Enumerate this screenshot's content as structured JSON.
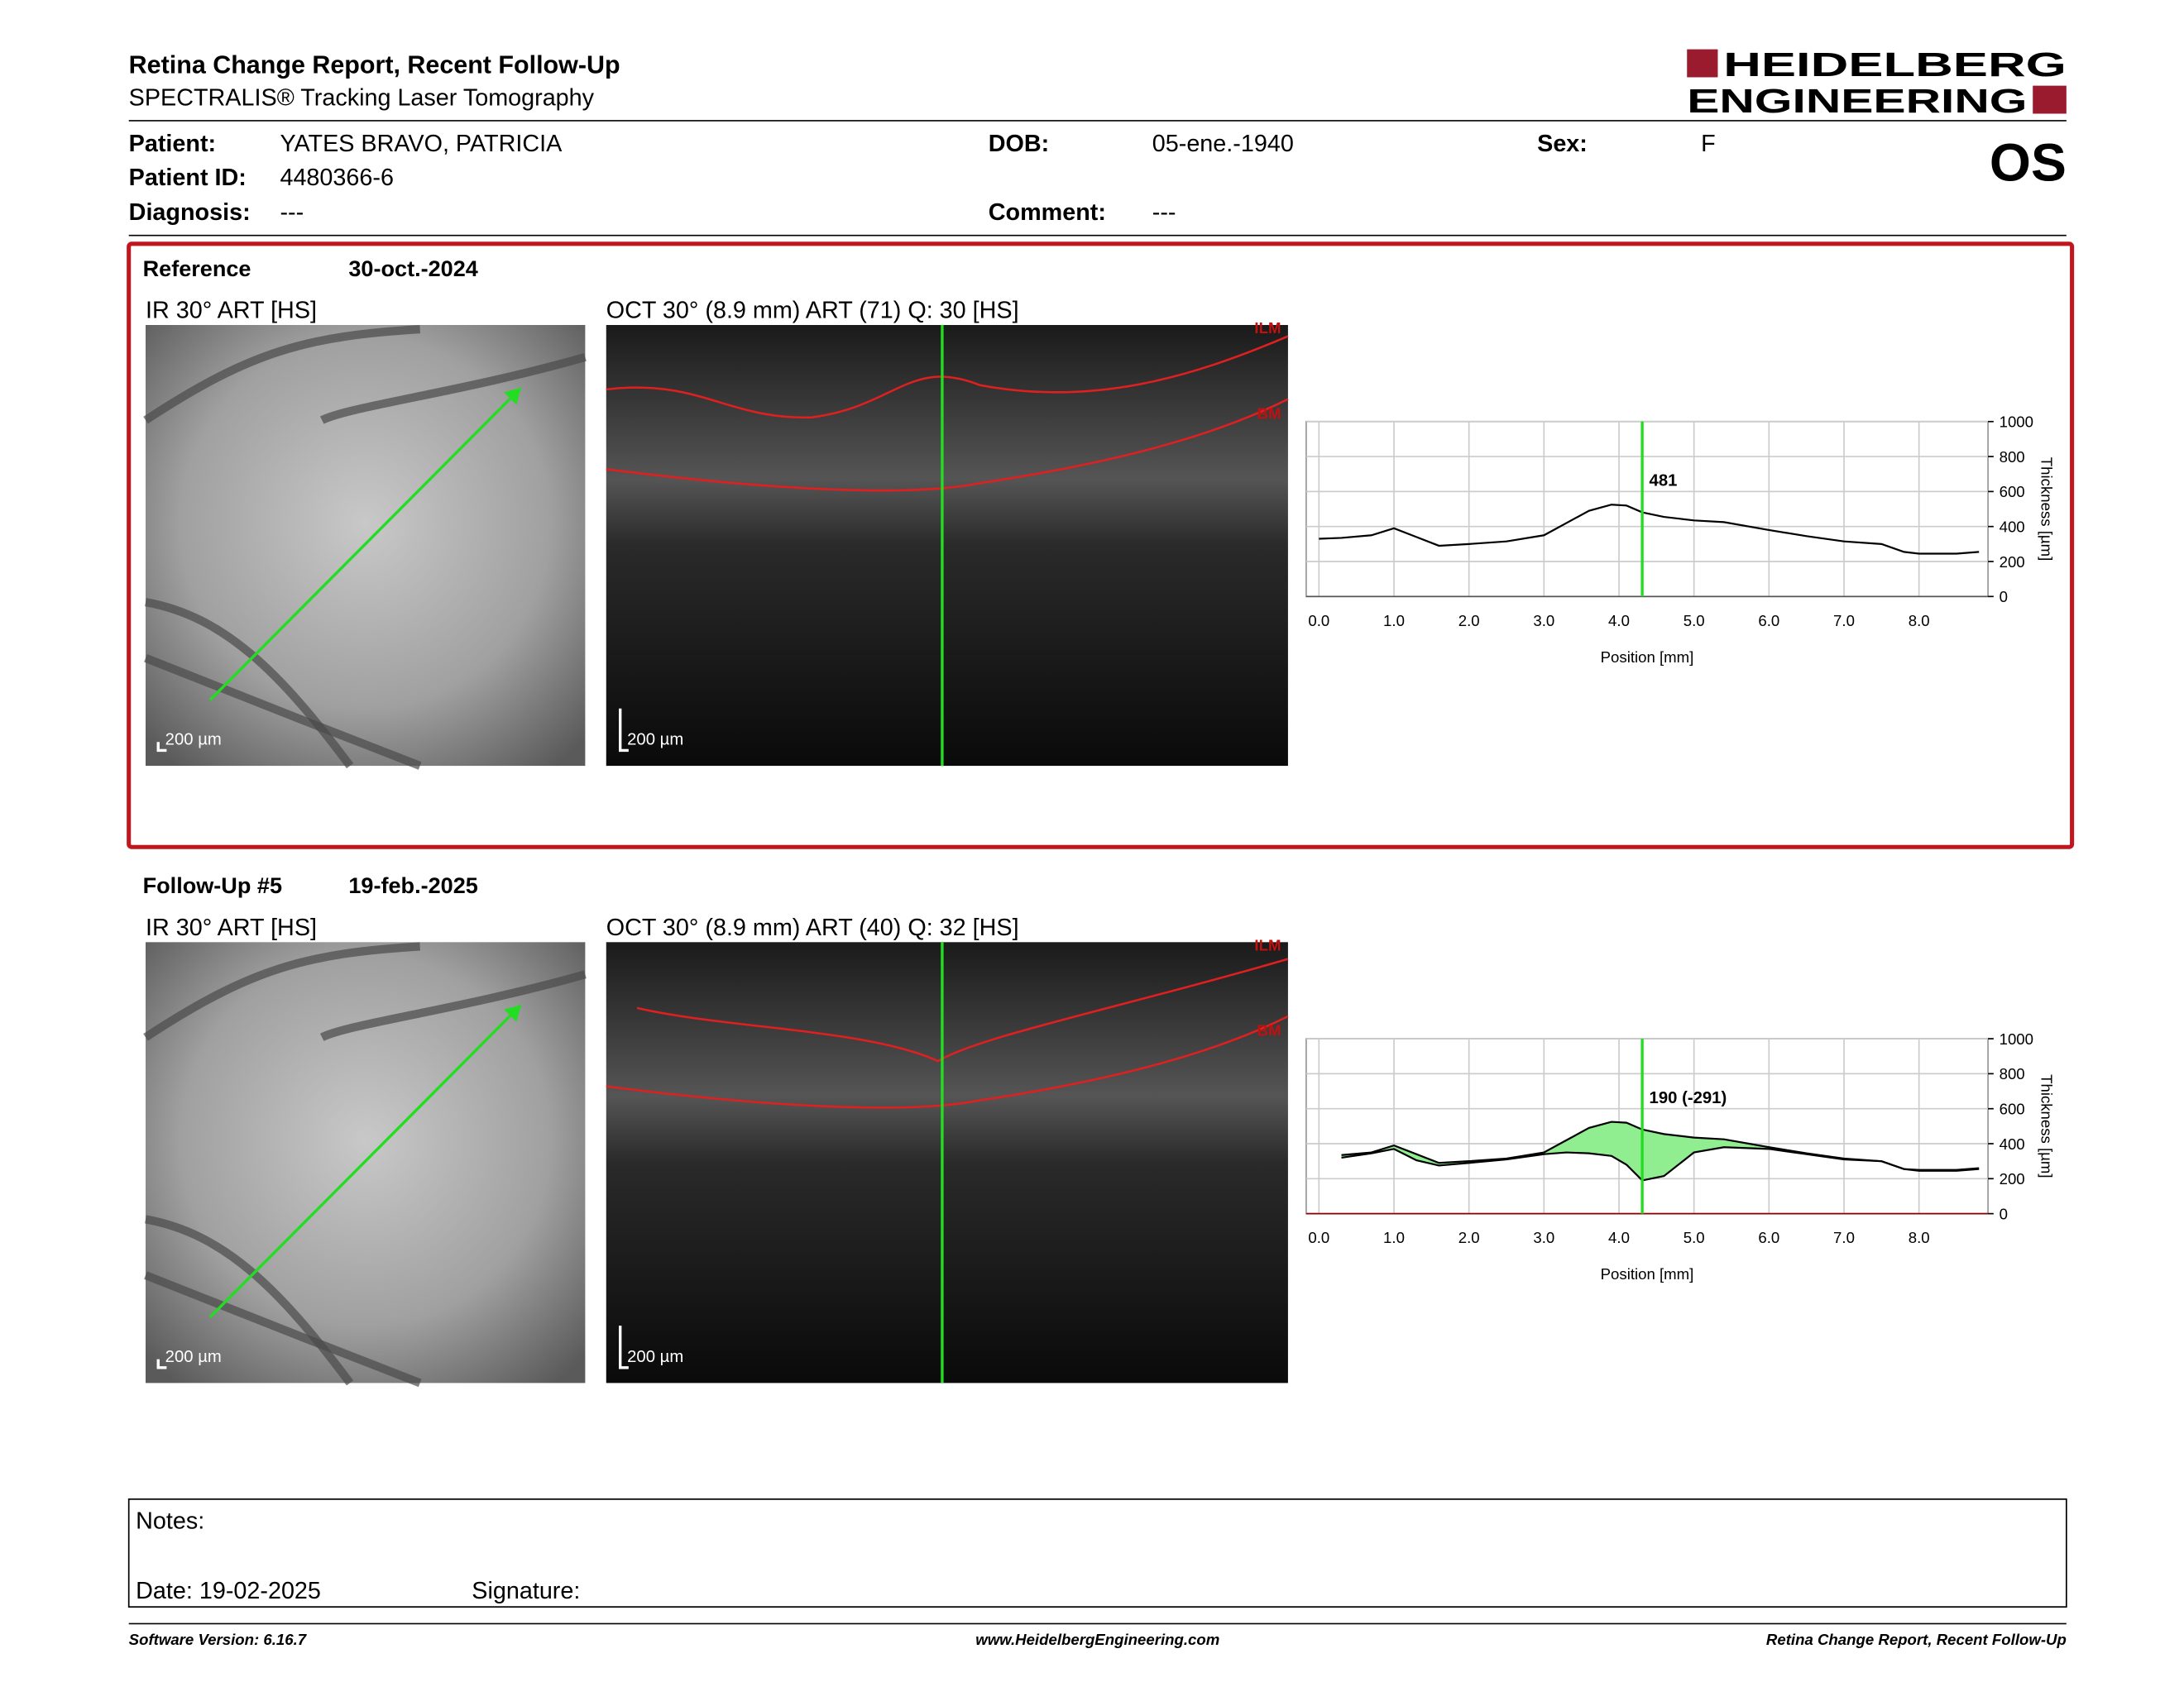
{
  "header": {
    "title": "Retina Change Report, Recent Follow-Up",
    "subtitle": "SPECTRALIS® Tracking Laser Tomography",
    "logo_line1": "HEIDELBERG",
    "logo_line2": "ENGINEERING"
  },
  "patient": {
    "fields": [
      {
        "label": "Patient:",
        "value": "YATES BRAVO, PATRICIA"
      },
      {
        "label": "Patient ID:",
        "value": "4480366-6"
      },
      {
        "label": "Diagnosis:",
        "value": "---"
      },
      {
        "label": "DOB:",
        "value": "05-ene.-1940"
      },
      {
        "label": "Comment:",
        "value": "---"
      },
      {
        "label": "Sex:",
        "value": "F"
      }
    ],
    "eye": "OS"
  },
  "exams": [
    {
      "heading": "Reference",
      "date": "30-oct.-2024",
      "ir_label": "IR 30° ART [HS]",
      "oct_label": "OCT 30° (8.9 mm) ART (71) Q: 30 [HS]",
      "scale_label": "200 µm",
      "layer_labels": [
        "ILM",
        "BM"
      ],
      "thickness_chart": {
        "type": "line",
        "x": [
          0,
          0.3,
          0.7,
          1.0,
          1.3,
          1.6,
          2.0,
          2.5,
          3.0,
          3.3,
          3.6,
          3.9,
          4.1,
          4.31,
          4.6,
          5.0,
          5.4,
          6.0,
          6.5,
          7.0,
          7.5,
          7.8,
          8.0,
          8.5,
          8.8
        ],
        "series": [
          {
            "color": "#000000",
            "values": [
              330,
              335,
              350,
              390,
              340,
              290,
              300,
              315,
              350,
              420,
              490,
              525,
              520,
              481,
              455,
              435,
              425,
              380,
              345,
              315,
              300,
              255,
              245,
              245,
              255
            ]
          }
        ],
        "xlim": [
          -0.17,
          8.92
        ],
        "ylim": [
          0,
          1000
        ],
        "xticks": [
          {
            "value": 0,
            "label": "0.0"
          },
          {
            "value": 1,
            "label": "1.0"
          },
          {
            "value": 2,
            "label": "2.0"
          },
          {
            "value": 3,
            "label": "3.0"
          },
          {
            "value": 4,
            "label": "4.0"
          },
          {
            "value": 5,
            "label": "5.0"
          },
          {
            "value": 6,
            "label": "6.0"
          },
          {
            "value": 7,
            "label": "7.0"
          },
          {
            "value": 8,
            "label": "8.0"
          }
        ],
        "yticks": [
          0,
          200,
          400,
          600,
          800,
          1000
        ],
        "xlabel": "Position [mm]",
        "ylabel": "Thickness [µm]",
        "marker_x": 4.31,
        "annotation": "481",
        "grid": true
      }
    },
    {
      "heading": "Follow-Up #5",
      "date": "19-feb.-2025",
      "ir_label": "IR 30° ART [HS]",
      "oct_label": "OCT 30° (8.9 mm) ART (40) Q: 32 [HS]",
      "scale_label": "200 µm",
      "layer_labels": [
        "ILM",
        "BM"
      ],
      "thickness_chart": {
        "type": "line",
        "x": [
          0,
          0.3,
          0.7,
          1.0,
          1.3,
          1.6,
          2.0,
          2.5,
          3.0,
          3.3,
          3.6,
          3.9,
          4.1,
          4.31,
          4.6,
          5.0,
          5.4,
          6.0,
          6.5,
          7.0,
          7.5,
          7.8,
          8.0,
          8.5,
          8.8
        ],
        "series": [
          {
            "color": "#000000",
            "values": [
              null,
              320,
              345,
              370,
              305,
              275,
              290,
              310,
              340,
              350,
              345,
              330,
              280,
              190,
              215,
              350,
              380,
              370,
              340,
              310,
              300,
              255,
              250,
              250,
              260
            ]
          },
          {
            "color": "#000000",
            "values": [
              null,
              335,
              350,
              390,
              340,
              290,
              300,
              315,
              350,
              420,
              490,
              525,
              520,
              481,
              455,
              435,
              425,
              380,
              345,
              315,
              300,
              255,
              245,
              245,
              255
            ]
          }
        ],
        "fill_color": "#90ee90",
        "xlim": [
          -0.17,
          8.92
        ],
        "ylim": [
          0,
          1000
        ],
        "xticks": [
          {
            "value": 0,
            "label": "0.0"
          },
          {
            "value": 1,
            "label": "1.0"
          },
          {
            "value": 2,
            "label": "2.0"
          },
          {
            "value": 3,
            "label": "3.0"
          },
          {
            "value": 4,
            "label": "4.0"
          },
          {
            "value": 5,
            "label": "5.0"
          },
          {
            "value": 6,
            "label": "6.0"
          },
          {
            "value": 7,
            "label": "7.0"
          },
          {
            "value": 8,
            "label": "8.0"
          }
        ],
        "yticks": [
          0,
          200,
          400,
          600,
          800,
          1000
        ],
        "xlabel": "Position [mm]",
        "ylabel": "Thickness [µm]",
        "marker_x": 4.31,
        "annotation": "190 (-291)",
        "grid": true
      }
    }
  ],
  "notes": {
    "label": "Notes:",
    "date": "Date: 19-02-2025",
    "signature": "Signature:"
  },
  "footer": {
    "left": "Software Version: 6.16.7",
    "center": "www.HeidelbergEngineering.com",
    "right": "Retina Change Report, Recent Follow-Up"
  }
}
